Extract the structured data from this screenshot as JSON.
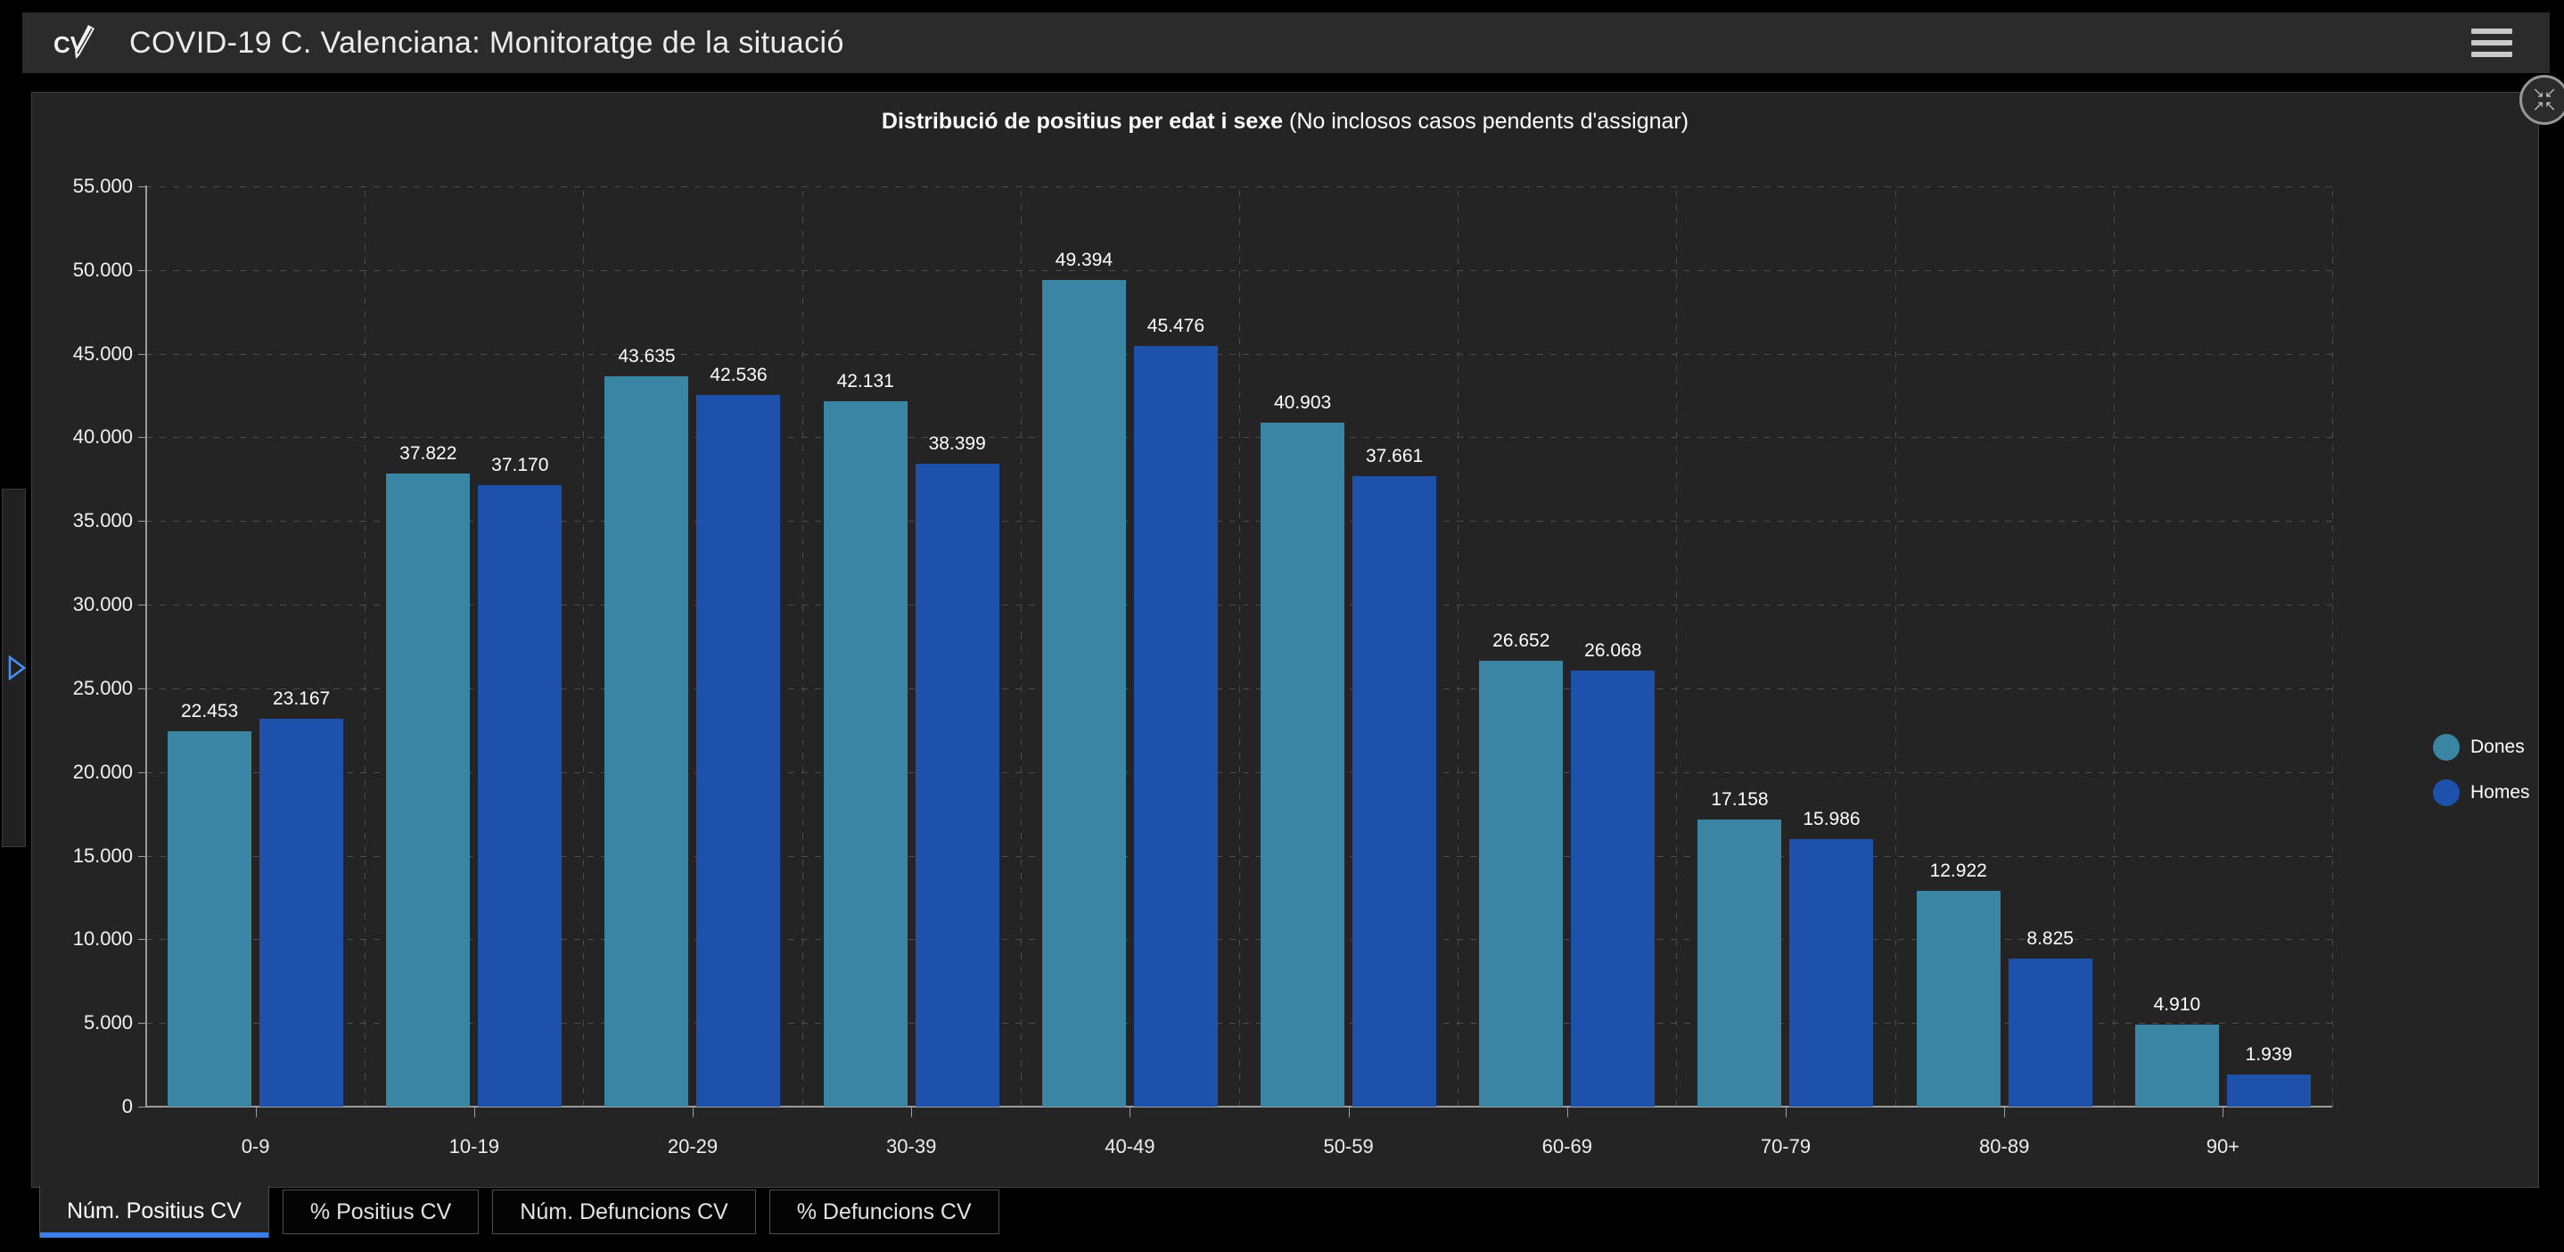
{
  "header": {
    "title": "COVID-19 C. Valenciana: Monitoratge de la situació",
    "logo_text": "CV"
  },
  "icons": {
    "compress_row1": "↘↙",
    "compress_row2": "↗↖"
  },
  "chart_data": {
    "type": "bar",
    "title": "Distribució de positius per edat i sexe",
    "subtitle": "(No inclosos casos pendents d'assignar)",
    "categories": [
      "0-9",
      "10-19",
      "20-29",
      "30-39",
      "40-49",
      "50-59",
      "60-69",
      "70-79",
      "80-89",
      "90+"
    ],
    "series": [
      {
        "name": "Dones",
        "color": "#3A84A4",
        "values": [
          22453,
          37822,
          43635,
          42131,
          49394,
          40903,
          26652,
          17158,
          12922,
          4910
        ]
      },
      {
        "name": "Homes",
        "color": "#1E51AC",
        "values": [
          23167,
          37170,
          42536,
          38399,
          45476,
          37661,
          26068,
          15986,
          8825,
          1939
        ]
      }
    ],
    "ylim": [
      0,
      55000
    ],
    "ytick_step": 5000,
    "grid": "dashed",
    "legend_position": "right",
    "value_labels": true,
    "thousands_separator": "."
  },
  "legend": {
    "items": [
      {
        "label": "Dones",
        "color": "#3A84A4"
      },
      {
        "label": "Homes",
        "color": "#1E51AC"
      }
    ]
  },
  "tabs": {
    "items": [
      {
        "label": "Núm. Positius CV",
        "active": true
      },
      {
        "label": "% Positius CV",
        "active": false
      },
      {
        "label": "Núm. Defuncions CV",
        "active": false
      },
      {
        "label": "% Defuncions CV",
        "active": false
      }
    ],
    "active_accent": "#3b7de8"
  }
}
